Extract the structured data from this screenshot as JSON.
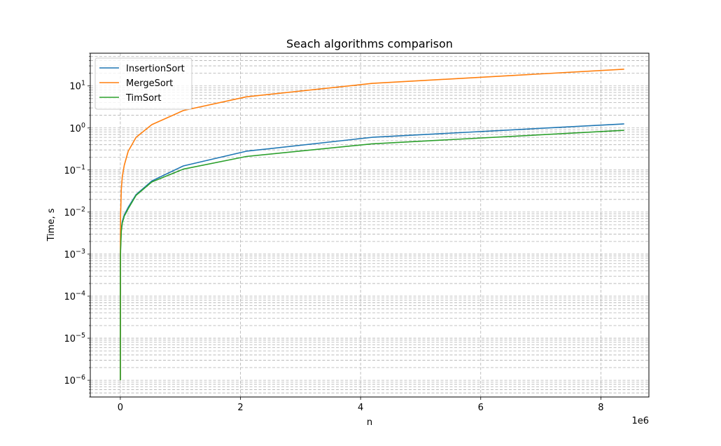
{
  "chart_data": {
    "type": "line",
    "title": "Seach algorithms comparison",
    "xlabel": "n",
    "ylabel": "Time, s",
    "x_offset_label": "1e6",
    "y_scale": "log",
    "xlim": [
      -500000,
      8800000
    ],
    "ylim": [
      4e-07,
      60
    ],
    "x_ticks": [
      0,
      2000000,
      4000000,
      6000000,
      8000000
    ],
    "x_tick_labels": [
      "0",
      "2",
      "4",
      "6",
      "8"
    ],
    "y_ticks": [
      1e-06,
      1e-05,
      0.0001,
      0.001,
      0.01,
      0.1,
      1,
      10
    ],
    "y_tick_labels": [
      {
        "base": "10",
        "exp": "−6"
      },
      {
        "base": "10",
        "exp": "−5"
      },
      {
        "base": "10",
        "exp": "−4"
      },
      {
        "base": "10",
        "exp": "−3"
      },
      {
        "base": "10",
        "exp": "−2"
      },
      {
        "base": "10",
        "exp": "−1"
      },
      {
        "base": "10",
        "exp": "0"
      },
      {
        "base": "10",
        "exp": "1"
      }
    ],
    "grid": "major and minor, dashed",
    "legend_position": "top-left",
    "x": [
      1,
      1024,
      4096,
      16384,
      32768,
      65536,
      131072,
      262144,
      524288,
      1048576,
      2097152,
      4194304,
      8388608
    ],
    "series": [
      {
        "name": "InsertionSort",
        "color": "#1f77b4",
        "values": [
          1e-06,
          0.0005,
          0.0015,
          0.004,
          0.006,
          0.0085,
          0.013,
          0.026,
          0.055,
          0.125,
          0.28,
          0.6,
          1.25
        ]
      },
      {
        "name": "MergeSort",
        "color": "#ff7f0e",
        "values": [
          1e-06,
          0.002,
          0.008,
          0.035,
          0.07,
          0.13,
          0.28,
          0.6,
          1.2,
          2.6,
          5.5,
          11.5,
          25
        ]
      },
      {
        "name": "TimSort",
        "color": "#2ca02c",
        "values": [
          1e-06,
          0.0004,
          0.0012,
          0.0035,
          0.0055,
          0.008,
          0.012,
          0.025,
          0.052,
          0.105,
          0.21,
          0.42,
          0.88
        ]
      }
    ]
  }
}
